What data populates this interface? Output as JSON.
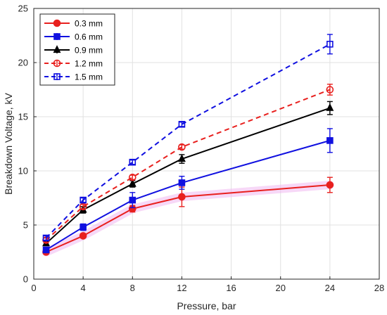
{
  "chart_data": {
    "type": "line",
    "xlabel": "Pressure, bar",
    "ylabel": "Breakdown Voltage, kV",
    "xlim": [
      0,
      28
    ],
    "ylim": [
      0,
      25
    ],
    "xticks": [
      0,
      4,
      8,
      12,
      16,
      20,
      24,
      28
    ],
    "yticks": [
      0,
      5,
      10,
      15,
      20,
      25
    ],
    "grid": true,
    "legend_position": "top-left",
    "series": [
      {
        "name": "0.3 mm",
        "color": "#e8201e",
        "dash": "solid",
        "marker": "circle-filled",
        "x": [
          1,
          4,
          8,
          12,
          24
        ],
        "y": [
          2.5,
          4.0,
          6.5,
          7.6,
          8.7
        ],
        "err": [
          0.2,
          0.2,
          0.3,
          0.9,
          0.7
        ]
      },
      {
        "name": "0.6 mm",
        "color": "#1010e0",
        "dash": "solid",
        "marker": "square-filled",
        "x": [
          1,
          4,
          8,
          12,
          24
        ],
        "y": [
          2.7,
          4.8,
          7.3,
          8.9,
          12.8
        ],
        "err": [
          0.2,
          0.3,
          0.7,
          0.6,
          1.1
        ]
      },
      {
        "name": "0.9 mm",
        "color": "#000000",
        "dash": "solid",
        "marker": "triangle-filled",
        "x": [
          1,
          4,
          8,
          12,
          24
        ],
        "y": [
          3.3,
          6.4,
          8.8,
          11.1,
          15.8
        ],
        "err": [
          0.2,
          0.3,
          0.3,
          0.4,
          0.6
        ]
      },
      {
        "name": "1.2 mm",
        "color": "#e8201e",
        "dash": "dashed",
        "marker": "circle-open",
        "x": [
          1,
          4,
          8,
          12,
          24
        ],
        "y": [
          3.6,
          6.7,
          9.4,
          12.2,
          17.5
        ],
        "err": [
          0.2,
          0.2,
          0.2,
          0.2,
          0.5
        ]
      },
      {
        "name": "1.5 mm",
        "color": "#1010e0",
        "dash": "dashed",
        "marker": "square-open",
        "x": [
          1,
          4,
          8,
          12,
          24
        ],
        "y": [
          3.8,
          7.3,
          10.8,
          14.3,
          21.7
        ],
        "err": [
          0.2,
          0.2,
          0.2,
          0.2,
          0.9
        ]
      }
    ]
  }
}
